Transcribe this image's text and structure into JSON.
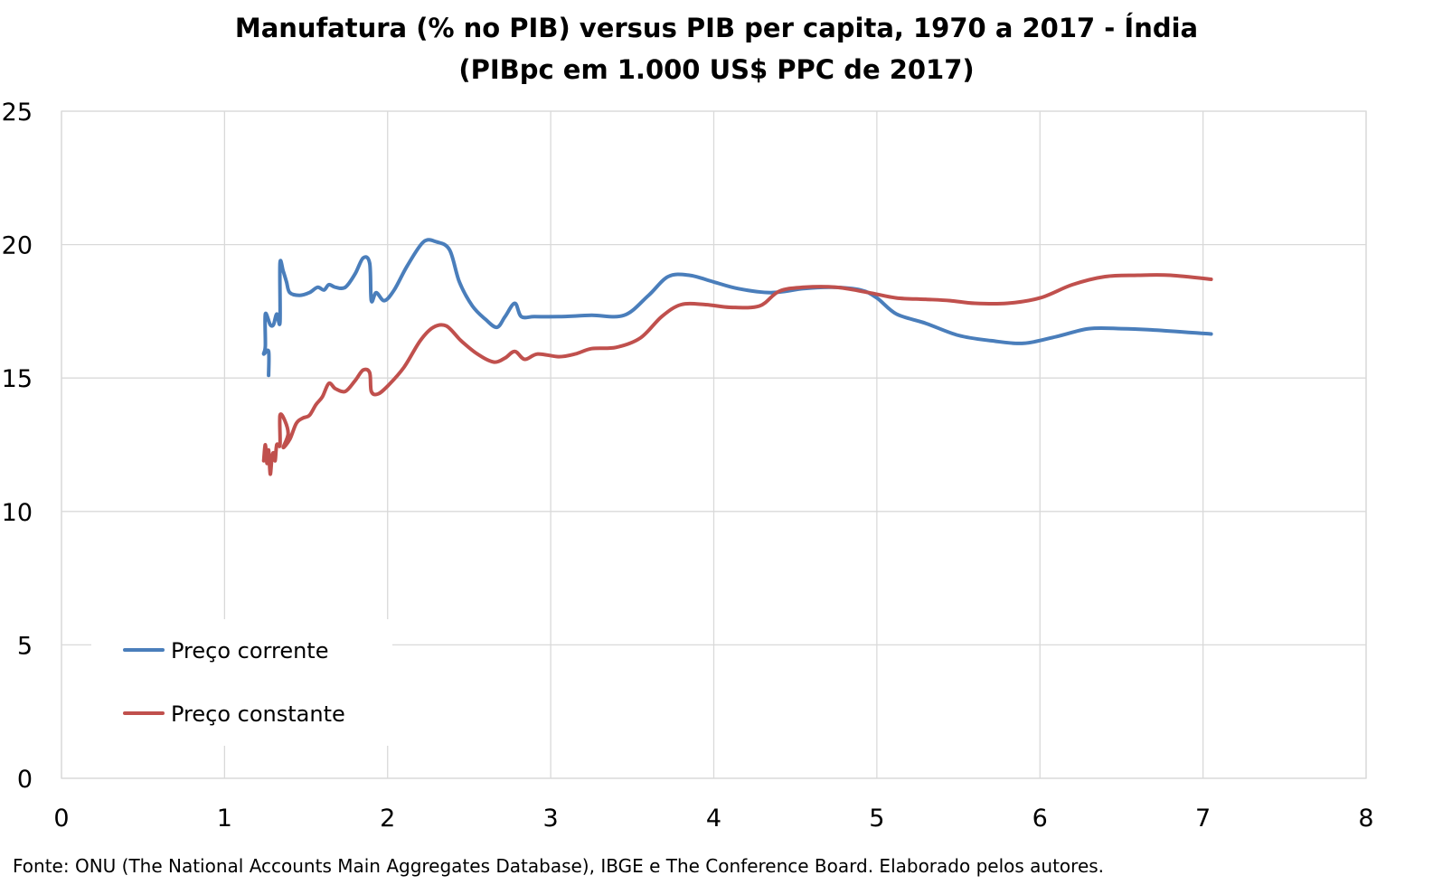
{
  "chart_data": {
    "type": "line",
    "title": "Manufatura (% no PIB) versus PIB per capita, 1970 a 2017 - Índia",
    "subtitle": "(PIBpc em 1.000 US$ PPC de 2017)",
    "xlim": [
      0,
      8
    ],
    "ylim": [
      0,
      25
    ],
    "x_ticks": [
      "0",
      "1",
      "2",
      "3",
      "4",
      "5",
      "6",
      "7",
      "8"
    ],
    "y_ticks": [
      "0",
      "5",
      "10",
      "15",
      "20",
      "25"
    ],
    "grid": true,
    "legend_placement": "bottom-left",
    "series": [
      {
        "name": "Preço corrente",
        "color": "#4a7ebb",
        "points": [
          [
            1.27,
            15.1
          ],
          [
            1.27,
            16.0
          ],
          [
            1.24,
            15.9
          ],
          [
            1.25,
            16.2
          ],
          [
            1.25,
            17.4
          ],
          [
            1.28,
            17.0
          ],
          [
            1.3,
            17.0
          ],
          [
            1.32,
            17.4
          ],
          [
            1.34,
            17.1
          ],
          [
            1.34,
            19.3
          ],
          [
            1.36,
            19.0
          ],
          [
            1.38,
            18.6
          ],
          [
            1.4,
            18.2
          ],
          [
            1.46,
            18.1
          ],
          [
            1.52,
            18.2
          ],
          [
            1.57,
            18.4
          ],
          [
            1.61,
            18.3
          ],
          [
            1.64,
            18.5
          ],
          [
            1.68,
            18.4
          ],
          [
            1.74,
            18.4
          ],
          [
            1.8,
            18.9
          ],
          [
            1.85,
            19.5
          ],
          [
            1.89,
            19.3
          ],
          [
            1.9,
            17.9
          ],
          [
            1.93,
            18.2
          ],
          [
            1.98,
            17.9
          ],
          [
            2.04,
            18.3
          ],
          [
            2.12,
            19.2
          ],
          [
            2.22,
            20.1
          ],
          [
            2.3,
            20.1
          ],
          [
            2.38,
            19.8
          ],
          [
            2.44,
            18.6
          ],
          [
            2.52,
            17.7
          ],
          [
            2.6,
            17.2
          ],
          [
            2.67,
            16.9
          ],
          [
            2.72,
            17.3
          ],
          [
            2.78,
            17.8
          ],
          [
            2.82,
            17.3
          ],
          [
            2.9,
            17.3
          ],
          [
            3.05,
            17.3
          ],
          [
            3.25,
            17.35
          ],
          [
            3.45,
            17.35
          ],
          [
            3.6,
            18.1
          ],
          [
            3.72,
            18.8
          ],
          [
            3.85,
            18.85
          ],
          [
            4.0,
            18.6
          ],
          [
            4.15,
            18.35
          ],
          [
            4.35,
            18.2
          ],
          [
            4.55,
            18.35
          ],
          [
            4.72,
            18.4
          ],
          [
            4.9,
            18.3
          ],
          [
            5.0,
            18.0
          ],
          [
            5.12,
            17.4
          ],
          [
            5.3,
            17.05
          ],
          [
            5.5,
            16.6
          ],
          [
            5.7,
            16.4
          ],
          [
            5.9,
            16.3
          ],
          [
            6.1,
            16.55
          ],
          [
            6.3,
            16.85
          ],
          [
            6.5,
            16.85
          ],
          [
            6.7,
            16.8
          ],
          [
            7.05,
            16.65
          ]
        ]
      },
      {
        "name": "Preço constante",
        "color": "#c0504d",
        "points": [
          [
            1.24,
            11.9
          ],
          [
            1.25,
            12.5
          ],
          [
            1.26,
            11.8
          ],
          [
            1.27,
            12.3
          ],
          [
            1.28,
            11.4
          ],
          [
            1.29,
            12.0
          ],
          [
            1.3,
            12.2
          ],
          [
            1.31,
            11.9
          ],
          [
            1.32,
            12.5
          ],
          [
            1.34,
            12.5
          ],
          [
            1.34,
            13.6
          ],
          [
            1.37,
            13.4
          ],
          [
            1.39,
            12.9
          ],
          [
            1.36,
            12.4
          ],
          [
            1.4,
            12.7
          ],
          [
            1.44,
            13.3
          ],
          [
            1.48,
            13.5
          ],
          [
            1.52,
            13.6
          ],
          [
            1.56,
            14.0
          ],
          [
            1.6,
            14.3
          ],
          [
            1.64,
            14.8
          ],
          [
            1.68,
            14.6
          ],
          [
            1.74,
            14.5
          ],
          [
            1.8,
            14.9
          ],
          [
            1.85,
            15.3
          ],
          [
            1.89,
            15.2
          ],
          [
            1.9,
            14.5
          ],
          [
            1.94,
            14.4
          ],
          [
            2.0,
            14.7
          ],
          [
            2.1,
            15.4
          ],
          [
            2.2,
            16.4
          ],
          [
            2.28,
            16.9
          ],
          [
            2.36,
            16.95
          ],
          [
            2.45,
            16.4
          ],
          [
            2.55,
            15.9
          ],
          [
            2.65,
            15.6
          ],
          [
            2.72,
            15.75
          ],
          [
            2.78,
            16.0
          ],
          [
            2.84,
            15.7
          ],
          [
            2.92,
            15.9
          ],
          [
            3.05,
            15.8
          ],
          [
            3.15,
            15.9
          ],
          [
            3.25,
            16.1
          ],
          [
            3.4,
            16.15
          ],
          [
            3.55,
            16.5
          ],
          [
            3.68,
            17.3
          ],
          [
            3.8,
            17.75
          ],
          [
            3.95,
            17.75
          ],
          [
            4.1,
            17.65
          ],
          [
            4.28,
            17.7
          ],
          [
            4.4,
            18.25
          ],
          [
            4.55,
            18.4
          ],
          [
            4.75,
            18.4
          ],
          [
            4.95,
            18.2
          ],
          [
            5.12,
            18.0
          ],
          [
            5.3,
            17.95
          ],
          [
            5.45,
            17.9
          ],
          [
            5.6,
            17.8
          ],
          [
            5.8,
            17.8
          ],
          [
            6.0,
            18.0
          ],
          [
            6.2,
            18.5
          ],
          [
            6.4,
            18.8
          ],
          [
            6.6,
            18.85
          ],
          [
            6.8,
            18.85
          ],
          [
            7.05,
            18.7
          ]
        ]
      }
    ],
    "source": "Fonte: ONU (The National Accounts Main Aggregates Database), IBGE e The Conference Board. Elaborado pelos autores."
  }
}
